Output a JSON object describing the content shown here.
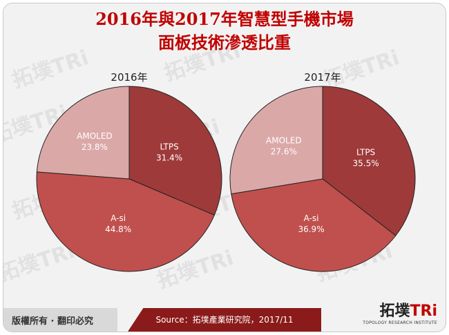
{
  "title": {
    "line1": "2016年與2017年智慧型手機市場",
    "line2": "面板技術滲透比重"
  },
  "chart_data": [
    {
      "type": "pie",
      "title": "2016年",
      "categories": [
        "LTPS",
        "A-si",
        "AMOLED"
      ],
      "values": [
        31.4,
        44.8,
        23.8
      ],
      "labels": [
        "31.4%",
        "44.8%",
        "23.8%"
      ],
      "colors": [
        "#9e3a3a",
        "#c0504d",
        "#dba8a8"
      ]
    },
    {
      "type": "pie",
      "title": "2017年",
      "categories": [
        "LTPS",
        "A-si",
        "AMOLED"
      ],
      "values": [
        35.5,
        36.9,
        27.6
      ],
      "labels": [
        "35.5%",
        "36.9%",
        "27.6%"
      ],
      "colors": [
        "#9e3a3a",
        "#c0504d",
        "#dba8a8"
      ]
    }
  ],
  "footer": {
    "copyright": "版權所有 · 翻印必究",
    "source": "Source：拓墣產業研究院，2017/11"
  },
  "logo": {
    "name_cn": "拓墣",
    "name_tri": "TRi",
    "tagline": "TOPOLOGY RESEARCH INSTITUTE"
  }
}
